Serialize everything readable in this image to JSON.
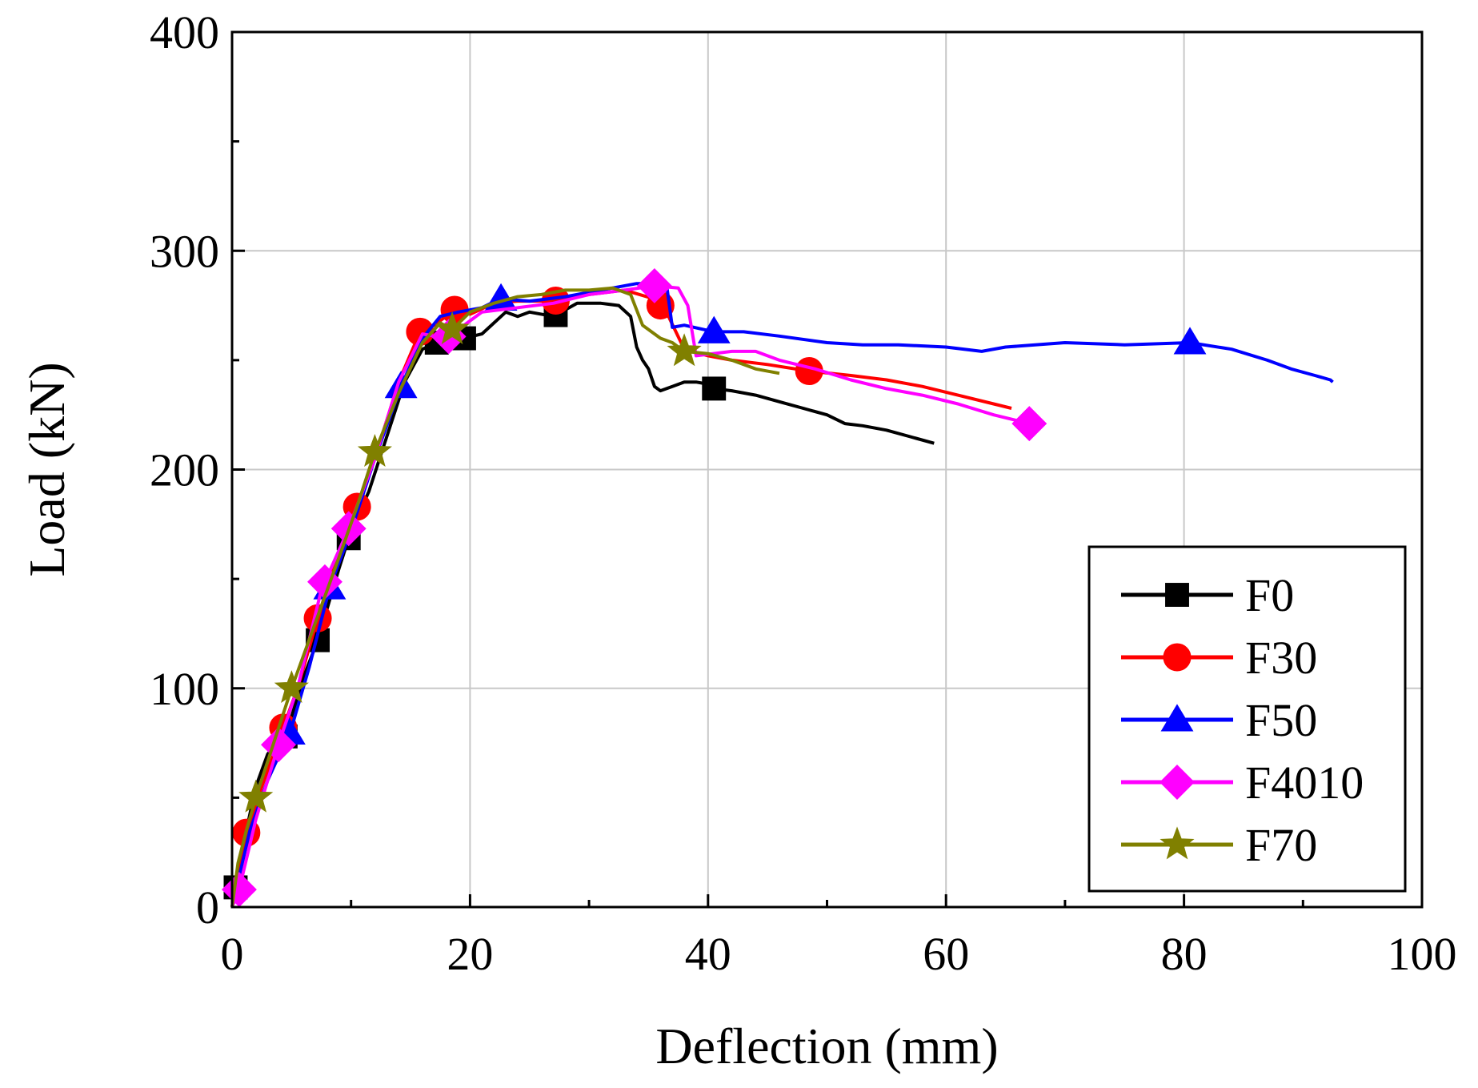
{
  "chart_data": {
    "type": "line",
    "title": "",
    "xlabel": "Deflection (mm)",
    "ylabel": "Load (kN)",
    "xlim": [
      0,
      100
    ],
    "ylim": [
      0,
      400
    ],
    "xticks": [
      0,
      20,
      40,
      60,
      80,
      100
    ],
    "yticks": [
      0,
      100,
      200,
      300,
      400
    ],
    "grid": true,
    "legend": "bottom-right",
    "series": [
      {
        "name": "F0",
        "color": "#000000",
        "marker": "square",
        "x": [
          0,
          1,
          2,
          3,
          4.5,
          6,
          7.2,
          9,
          10,
          11.5,
          13,
          14.5,
          16,
          17.2,
          19.5,
          21,
          23,
          24,
          25,
          27,
          29,
          31,
          32.5,
          33.5,
          34,
          34.5,
          35,
          35.5,
          36,
          37,
          38,
          39,
          40,
          40.5,
          42,
          44,
          46,
          48,
          50,
          51.5,
          53,
          55,
          57,
          59
        ],
        "y": [
          0,
          30,
          55,
          70,
          78,
          105,
          122,
          155,
          172,
          190,
          215,
          240,
          255,
          258,
          260,
          262,
          272,
          270,
          272,
          270,
          276,
          276,
          275,
          270,
          256,
          250,
          246,
          238,
          236,
          238,
          240,
          240,
          239,
          237,
          236,
          234,
          231,
          228,
          225,
          221,
          220,
          218,
          215,
          212
        ],
        "marker_x": [
          0.3,
          4.5,
          7.2,
          9.8,
          17.2,
          19.5,
          27.2,
          40.5
        ]
      },
      {
        "name": "F30",
        "color": "#ff0000",
        "marker": "circle",
        "x": [
          0,
          1.2,
          2.5,
          4.3,
          5.5,
          7.2,
          8.5,
          10.5,
          12,
          14,
          15.8,
          17,
          18.7,
          20,
          22,
          24,
          27,
          30,
          33,
          35.5,
          36.5,
          38,
          40,
          42,
          45,
          48.5,
          52,
          55,
          58,
          61,
          64,
          65.5
        ],
        "y": [
          0,
          34,
          55,
          82,
          100,
          132,
          155,
          183,
          205,
          240,
          263,
          266,
          273,
          271,
          276,
          277,
          277,
          280,
          282,
          278,
          272,
          255,
          252,
          250,
          248,
          245,
          243,
          241,
          238,
          234,
          230,
          228
        ],
        "marker_x": [
          1.2,
          4.3,
          7.2,
          10.5,
          15.8,
          18.7,
          27.2,
          36,
          48.5
        ]
      },
      {
        "name": "F50",
        "color": "#0000ff",
        "marker": "triangle",
        "x": [
          0,
          1.5,
          3,
          5,
          6.5,
          8.2,
          10,
          12,
          14.2,
          16,
          17.5,
          19,
          21,
          22.5,
          25,
          28,
          31,
          34,
          36.5,
          37,
          38,
          40.5,
          43,
          46,
          50,
          53,
          56,
          60,
          63,
          65,
          70,
          75,
          80.5,
          84,
          87,
          89,
          91,
          92.3,
          92.5
        ],
        "y": [
          0,
          35,
          58,
          82,
          110,
          146,
          172,
          205,
          238,
          260,
          270,
          272,
          274,
          278,
          277,
          279,
          282,
          285,
          285,
          265,
          266,
          263,
          263,
          261,
          258,
          257,
          257,
          256,
          254,
          256,
          258,
          257,
          258,
          255,
          250,
          246,
          243,
          241,
          240
        ],
        "marker_x": [
          4.8,
          8.2,
          14.2,
          22.6,
          40.5,
          80.5
        ]
      },
      {
        "name": "F4010",
        "color": "#ff00ff",
        "marker": "diamond",
        "x": [
          0,
          0.6,
          2,
          4,
          5.5,
          7.5,
          9.8,
          12,
          14,
          16,
          18,
          21,
          24,
          27,
          30,
          33,
          35.5,
          37.5,
          38.3,
          39,
          42,
          44,
          46,
          49,
          52,
          55,
          58,
          61,
          64,
          67
        ],
        "y": [
          0,
          8,
          40,
          76,
          100,
          145,
          173,
          205,
          240,
          262,
          260,
          272,
          274,
          276,
          280,
          282,
          284,
          283,
          275,
          252,
          254,
          254,
          250,
          246,
          241,
          237,
          234,
          230,
          225,
          221
        ],
        "marker_x": [
          0.6,
          3.9,
          7.8,
          9.8,
          18.2,
          35.5,
          67
        ]
      },
      {
        "name": "F70",
        "color": "#808000",
        "marker": "star",
        "x": [
          0,
          0.5,
          1.2,
          2,
          3.5,
          5,
          7,
          9,
          10.5,
          12,
          14,
          16,
          17.5,
          18.5,
          20,
          22,
          24,
          26,
          28,
          30,
          32,
          33.5,
          34.5,
          36,
          37,
          38,
          40,
          42,
          44,
          46
        ],
        "y": [
          0,
          20,
          35,
          50,
          75,
          100,
          130,
          160,
          183,
          208,
          235,
          258,
          267,
          264,
          272,
          276,
          279,
          280,
          282,
          282,
          283,
          280,
          266,
          260,
          258,
          254,
          253,
          250,
          246,
          244
        ],
        "marker_x": [
          2,
          5,
          12,
          18.5,
          38
        ]
      }
    ]
  }
}
